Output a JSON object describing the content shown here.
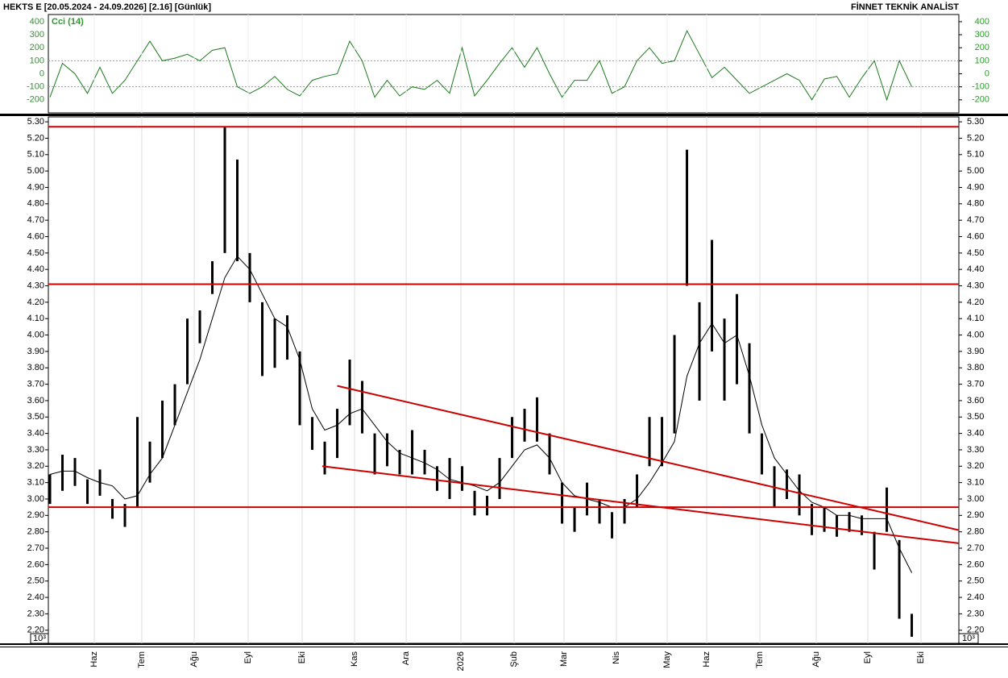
{
  "header": {
    "title": "HEKTS E  [20.05.2024 - 24.09.2026]  [2.16]  [Günlük]",
    "brand": "FİNNET TEKNİK ANALİST"
  },
  "chart_data": [
    {
      "type": "line",
      "title": "Cci (14)",
      "ylim": [
        -300,
        455
      ],
      "yticks": [
        400,
        300,
        200,
        100,
        0,
        -100,
        -200
      ],
      "dotted_levels": [
        100,
        -100
      ],
      "xlim": [
        -0.13,
        72.77
      ],
      "series": [
        {
          "name": "Cci (14)",
          "color": "#1a7a1a",
          "values": [
            -180,
            80,
            0,
            -150,
            50,
            -150,
            -50,
            100,
            250,
            100,
            120,
            150,
            100,
            180,
            200,
            -100,
            -150,
            -100,
            -20,
            -120,
            -170,
            -50,
            -20,
            0,
            250,
            100,
            -180,
            -50,
            -170,
            -100,
            -120,
            -50,
            -150,
            200,
            -170,
            -50,
            80,
            200,
            50,
            200,
            0,
            -180,
            -50,
            -50,
            100,
            -150,
            -100,
            100,
            200,
            80,
            100,
            330,
            150,
            -30,
            50,
            -50,
            -150,
            -100,
            -50,
            0,
            -50,
            -200,
            -40,
            -20,
            -180,
            -30,
            100,
            -200,
            100,
            -100
          ]
        }
      ]
    },
    {
      "type": "hilo",
      "ylim": [
        2.12,
        5.33
      ],
      "xlim": [
        -0.13,
        72.77
      ],
      "scale_label": "10³",
      "grid": true,
      "yticks": [
        {
          "value": 5.3,
          "label": "5.30"
        },
        {
          "value": 5.2,
          "label": "5.20"
        },
        {
          "value": 5.1,
          "label": "5.10"
        },
        {
          "value": 5.0,
          "label": "5.00"
        },
        {
          "value": 4.9,
          "label": "4.90"
        },
        {
          "value": 4.8,
          "label": "4.80"
        },
        {
          "value": 4.7,
          "label": "4.70"
        },
        {
          "value": 4.6,
          "label": "4.60"
        },
        {
          "value": 4.5,
          "label": "4.50"
        },
        {
          "value": 4.4,
          "label": "4.40"
        },
        {
          "value": 4.3,
          "label": "4.30"
        },
        {
          "value": 4.2,
          "label": "4.20"
        },
        {
          "value": 4.1,
          "label": "4.10"
        },
        {
          "value": 4.0,
          "label": "4.00"
        },
        {
          "value": 3.9,
          "label": "3.90"
        },
        {
          "value": 3.8,
          "label": "3.80"
        },
        {
          "value": 3.7,
          "label": "3.70"
        },
        {
          "value": 3.6,
          "label": "3.60"
        },
        {
          "value": 3.5,
          "label": "3.50"
        },
        {
          "value": 3.4,
          "label": "3.40"
        },
        {
          "value": 3.3,
          "label": "3.30"
        },
        {
          "value": 3.2,
          "label": "3.20"
        },
        {
          "value": 3.1,
          "label": "3.10"
        },
        {
          "value": 3.0,
          "label": "3.00"
        },
        {
          "value": 2.9,
          "label": "2.90"
        },
        {
          "value": 2.8,
          "label": "2.80"
        },
        {
          "value": 2.7,
          "label": "2.70"
        },
        {
          "value": 2.6,
          "label": "2.60"
        },
        {
          "value": 2.5,
          "label": "2.50"
        },
        {
          "value": 2.4,
          "label": "2.40"
        },
        {
          "value": 2.3,
          "label": "2.30"
        },
        {
          "value": 2.2,
          "label": "2.20"
        }
      ],
      "xticks": [
        {
          "value": 3.55,
          "label": "Haz"
        },
        {
          "value": 7.35,
          "label": "Tem"
        },
        {
          "value": 11.55,
          "label": "Ağu"
        },
        {
          "value": 15.87,
          "label": "Eyl"
        },
        {
          "value": 20.19,
          "label": "Eki"
        },
        {
          "value": 24.39,
          "label": "Kas"
        },
        {
          "value": 28.52,
          "label": "Ara"
        },
        {
          "value": 32.9,
          "label": "2026"
        },
        {
          "value": 37.16,
          "label": "Şub"
        },
        {
          "value": 41.16,
          "label": "Mar"
        },
        {
          "value": 45.35,
          "label": "Nis"
        },
        {
          "value": 49.42,
          "label": "May"
        },
        {
          "value": 52.58,
          "label": "Haz"
        },
        {
          "value": 56.84,
          "label": "Tem"
        },
        {
          "value": 61.35,
          "label": "Ağu"
        },
        {
          "value": 65.48,
          "label": "Eyl"
        },
        {
          "value": 69.74,
          "label": "Eki"
        }
      ],
      "series": [
        {
          "name": "high",
          "color": "#000000",
          "values": [
            3.15,
            3.27,
            3.25,
            3.12,
            3.18,
            3.0,
            2.97,
            3.5,
            3.35,
            3.6,
            3.7,
            4.1,
            4.15,
            4.45,
            5.27,
            5.07,
            4.5,
            4.2,
            4.1,
            4.12,
            3.9,
            3.5,
            3.35,
            3.55,
            3.85,
            3.72,
            3.4,
            3.4,
            3.3,
            3.42,
            3.3,
            3.2,
            3.25,
            3.2,
            3.05,
            3.02,
            3.25,
            3.5,
            3.55,
            3.62,
            3.4,
            3.1,
            2.95,
            3.1,
            3.0,
            2.92,
            3.0,
            3.15,
            3.5,
            3.5,
            4.0,
            5.13,
            4.2,
            4.58,
            4.1,
            4.25,
            3.95,
            3.4,
            3.2,
            3.18,
            3.15,
            2.97,
            2.95,
            2.9,
            2.92,
            2.9,
            2.8,
            3.07,
            2.75,
            2.3
          ]
        },
        {
          "name": "low",
          "color": "#000000",
          "values": [
            2.97,
            3.05,
            3.08,
            2.97,
            3.02,
            2.88,
            2.83,
            2.95,
            3.1,
            3.25,
            3.45,
            3.7,
            3.95,
            4.25,
            4.5,
            4.45,
            4.2,
            3.75,
            3.8,
            3.85,
            3.45,
            3.3,
            3.15,
            3.25,
            3.45,
            3.4,
            3.15,
            3.2,
            3.15,
            3.15,
            3.15,
            3.05,
            3.0,
            3.05,
            2.9,
            2.9,
            3.0,
            3.25,
            3.35,
            3.35,
            3.15,
            2.85,
            2.8,
            2.9,
            2.85,
            2.76,
            2.85,
            2.95,
            3.2,
            3.2,
            3.4,
            4.3,
            3.6,
            3.9,
            3.6,
            3.7,
            3.4,
            3.15,
            2.95,
            3.0,
            2.9,
            2.78,
            2.8,
            2.77,
            2.8,
            2.78,
            2.57,
            2.8,
            2.27,
            2.16
          ]
        },
        {
          "name": "ma",
          "color": "#000000",
          "values": [
            3.15,
            3.17,
            3.17,
            3.13,
            3.1,
            3.08,
            3.0,
            3.02,
            3.15,
            3.25,
            3.45,
            3.65,
            3.85,
            4.1,
            4.35,
            4.48,
            4.4,
            4.25,
            4.1,
            4.05,
            3.85,
            3.55,
            3.42,
            3.45,
            3.52,
            3.55,
            3.45,
            3.35,
            3.28,
            3.25,
            3.22,
            3.18,
            3.12,
            3.1,
            3.08,
            3.05,
            3.1,
            3.2,
            3.3,
            3.33,
            3.25,
            3.1,
            3.02,
            3.0,
            2.98,
            2.95,
            2.95,
            3.0,
            3.1,
            3.22,
            3.35,
            3.75,
            3.95,
            4.07,
            3.95,
            4.0,
            3.75,
            3.45,
            3.25,
            3.15,
            3.05,
            2.98,
            2.95,
            2.9,
            2.9,
            2.88,
            2.88,
            2.88,
            2.7,
            2.55
          ]
        }
      ],
      "hlines": [
        5.27,
        4.31,
        2.95
      ],
      "line_color": "#cc0000",
      "trendlines": [
        {
          "x": [
            23,
            72.77
          ],
          "y": [
            3.69,
            2.81
          ]
        },
        {
          "x": [
            21.8,
            72.77
          ],
          "y": [
            3.2,
            2.73
          ]
        }
      ]
    }
  ]
}
